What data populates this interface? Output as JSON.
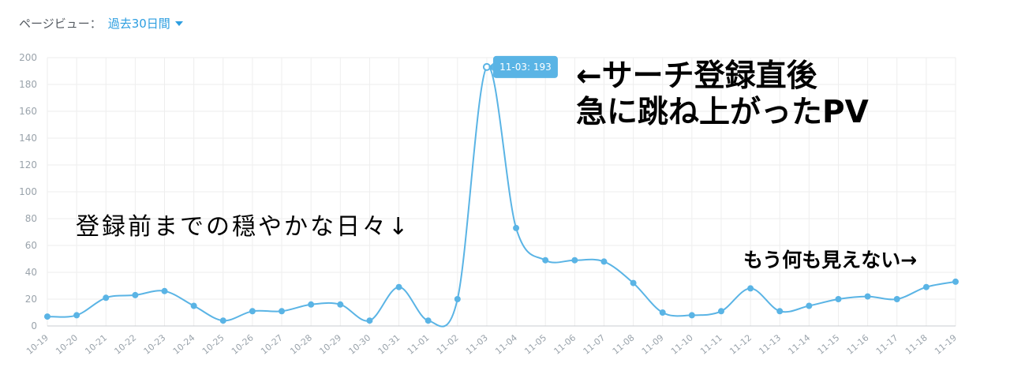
{
  "header": {
    "label": "ページビュー：",
    "range": "過去30日間"
  },
  "annotations": {
    "spike_line1": "←サーチ登録直後",
    "spike_line2": "急に跳ね上がったPV",
    "before": "登録前までの穏やかな日々↓",
    "after": "もう何も見えない→"
  },
  "colors": {
    "line": "#5ab4e5",
    "tooltip_bg": "#5ab4e5",
    "grid": "#eeeeee",
    "axis_text": "#9aa3ab"
  },
  "chart_data": {
    "type": "line",
    "x": [
      "10-19",
      "10-20",
      "10-21",
      "10-22",
      "10-23",
      "10-24",
      "10-25",
      "10-26",
      "10-27",
      "10-28",
      "10-29",
      "10-30",
      "10-31",
      "11-01",
      "11-02",
      "11-03",
      "11-04",
      "11-05",
      "11-06",
      "11-07",
      "11-08",
      "11-09",
      "11-10",
      "11-11",
      "11-12",
      "11-13",
      "11-14",
      "11-15",
      "11-16",
      "11-17",
      "11-18",
      "11-19"
    ],
    "series": [
      {
        "values": [
          7,
          8,
          21,
          23,
          26,
          15,
          4,
          11,
          11,
          16,
          16,
          4,
          29,
          4,
          20,
          193,
          73,
          49,
          49,
          48,
          32,
          10,
          8,
          11,
          28,
          11,
          15,
          20,
          22,
          20,
          29,
          33
        ]
      }
    ],
    "ylim": [
      0,
      200
    ],
    "yticks": [
      0,
      20,
      40,
      60,
      80,
      100,
      120,
      140,
      160,
      180,
      200
    ],
    "grid": true,
    "tooltip": {
      "text": "11-03: 193",
      "index": 15
    }
  }
}
